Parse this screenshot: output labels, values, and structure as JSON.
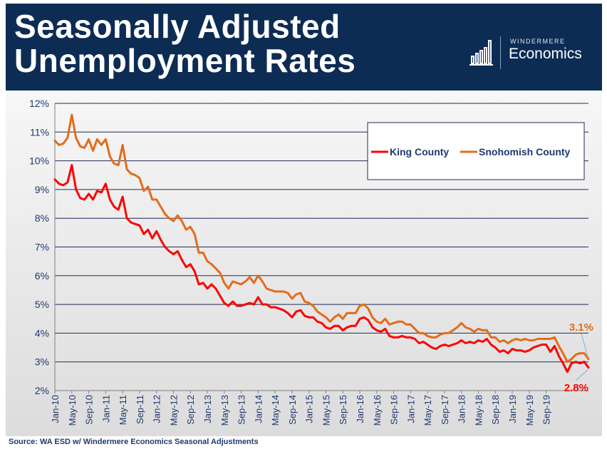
{
  "header": {
    "title_line1": "Seasonally Adjusted",
    "title_line2": "Unemployment Rates",
    "logo_small": "WINDERMERE",
    "logo_big": "Economics",
    "bg_color": "#0d2c54"
  },
  "chart_data": {
    "type": "line",
    "ylim": [
      2,
      12
    ],
    "yticks": [
      "12%",
      "11%",
      "10%",
      "9%",
      "8%",
      "7%",
      "6%",
      "5%",
      "4%",
      "3%",
      "2%"
    ],
    "grid": true,
    "legend_position": "top-right",
    "xticks": [
      "Jan-10",
      "May-10",
      "Sep-10",
      "Jan-11",
      "May-11",
      "Sep-11",
      "Jan-12",
      "May-12",
      "Sep-12",
      "Jan-13",
      "May-13",
      "Sep-13",
      "Jan-14",
      "May-14",
      "Sep-14",
      "Jan-15",
      "May-15",
      "Sep-15",
      "Jan-16",
      "May-16",
      "Sep-16",
      "Jan-17",
      "May-17",
      "Sep-17",
      "Jan-18",
      "May-18",
      "Sep-18",
      "Jan-19",
      "May-19",
      "Sep-19"
    ],
    "x_start": "Jan-10",
    "x_end": "Oct-19",
    "series": [
      {
        "name": "King County",
        "color": "#ff0000",
        "values": [
          9.35,
          9.2,
          9.15,
          9.25,
          9.85,
          9.0,
          8.7,
          8.65,
          8.85,
          8.65,
          8.95,
          8.9,
          9.2,
          8.65,
          8.4,
          8.3,
          8.75,
          8.0,
          7.85,
          7.8,
          7.75,
          7.45,
          7.6,
          7.3,
          7.55,
          7.25,
          7.0,
          6.85,
          6.75,
          6.85,
          6.55,
          6.3,
          6.4,
          6.15,
          5.7,
          5.75,
          5.55,
          5.7,
          5.55,
          5.3,
          5.05,
          4.95,
          5.1,
          4.95,
          4.95,
          5.0,
          5.05,
          5.0,
          5.25,
          5.0,
          5.0,
          4.9,
          4.9,
          4.85,
          4.8,
          4.7,
          4.55,
          4.75,
          4.8,
          4.6,
          4.55,
          4.55,
          4.4,
          4.35,
          4.2,
          4.15,
          4.25,
          4.25,
          4.1,
          4.2,
          4.25,
          4.25,
          4.5,
          4.55,
          4.45,
          4.2,
          4.1,
          4.05,
          4.15,
          3.9,
          3.85,
          3.85,
          3.9,
          3.85,
          3.85,
          3.8,
          3.65,
          3.7,
          3.6,
          3.5,
          3.45,
          3.55,
          3.6,
          3.55,
          3.6,
          3.65,
          3.75,
          3.65,
          3.7,
          3.65,
          3.75,
          3.7,
          3.8,
          3.6,
          3.5,
          3.35,
          3.4,
          3.3,
          3.45,
          3.4,
          3.4,
          3.35,
          3.4,
          3.5,
          3.55,
          3.6,
          3.6,
          3.35,
          3.55,
          3.2,
          2.95,
          2.65,
          2.95,
          3.0,
          2.95,
          3.0,
          2.8
        ],
        "end_label": "2.8%"
      },
      {
        "name": "Snohomish County",
        "color": "#e36c1b",
        "values": [
          10.7,
          10.55,
          10.6,
          10.8,
          11.6,
          10.8,
          10.5,
          10.45,
          10.75,
          10.35,
          10.75,
          10.55,
          10.75,
          10.15,
          9.9,
          9.85,
          10.55,
          9.7,
          9.55,
          9.5,
          9.4,
          8.95,
          9.1,
          8.65,
          8.65,
          8.4,
          8.15,
          8.0,
          7.9,
          8.1,
          7.9,
          7.6,
          7.7,
          7.45,
          6.8,
          6.8,
          6.5,
          6.4,
          6.25,
          6.1,
          5.75,
          5.55,
          5.8,
          5.75,
          5.7,
          5.8,
          5.95,
          5.75,
          6.0,
          5.8,
          5.55,
          5.5,
          5.45,
          5.45,
          5.45,
          5.4,
          5.2,
          5.35,
          5.4,
          5.1,
          5.05,
          4.95,
          4.75,
          4.65,
          4.55,
          4.4,
          4.55,
          4.65,
          4.5,
          4.7,
          4.7,
          4.7,
          4.95,
          5.0,
          4.85,
          4.55,
          4.4,
          4.35,
          4.5,
          4.3,
          4.35,
          4.4,
          4.4,
          4.3,
          4.3,
          4.15,
          4.0,
          4.0,
          3.9,
          3.85,
          3.85,
          3.95,
          4.0,
          4.0,
          4.1,
          4.2,
          4.35,
          4.2,
          4.15,
          4.05,
          4.15,
          4.1,
          4.1,
          3.85,
          3.85,
          3.7,
          3.75,
          3.65,
          3.75,
          3.8,
          3.75,
          3.8,
          3.75,
          3.75,
          3.8,
          3.8,
          3.8,
          3.8,
          3.85,
          3.55,
          3.3,
          3.0,
          3.1,
          3.25,
          3.3,
          3.3,
          3.1
        ],
        "end_label": "3.1%"
      }
    ]
  },
  "source": "Source: WA ESD w/ Windermere Economics Seasonal Adjustments"
}
